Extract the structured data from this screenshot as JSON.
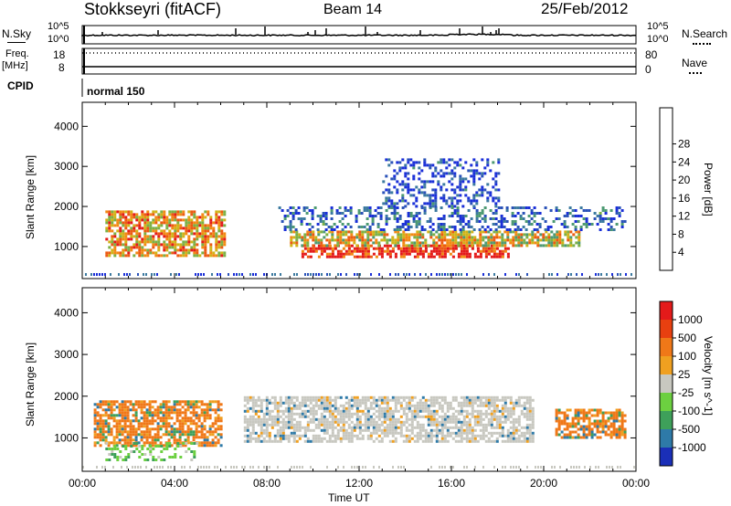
{
  "header": {
    "station": "Stokkseyri (fitACF)",
    "beam": "Beam 14",
    "date": "25/Feb/2012"
  },
  "status_panels": {
    "nsky": {
      "label": "N.Sky",
      "top_tick": "10^5",
      "bottom_tick": "10^0",
      "right_label": "N.Search",
      "right_top_tick": "10^5",
      "right_bottom_tick": "10^0"
    },
    "freq": {
      "label_line1": "Freq.",
      "label_line2": "[MHz]",
      "top_tick": "18",
      "bottom_tick": "8",
      "right_label": "Nave",
      "right_top_tick": "80",
      "right_bottom_tick": "0"
    },
    "cpid": {
      "label": "CPID",
      "value": "normal 150"
    }
  },
  "chart_data": [
    {
      "type": "heatmap",
      "title": "",
      "ylabel": "Slant Range [km]",
      "xlabel": "",
      "ylim": [
        200,
        4600
      ],
      "xlim": [
        "00:00",
        "24:00"
      ],
      "y_ticks": [
        "1000",
        "2000",
        "3000",
        "4000"
      ],
      "colorbar": {
        "label": "Power [dB]",
        "ticks": [
          "4",
          "8",
          "12",
          "16",
          "20",
          "24",
          "28"
        ],
        "colors": [
          "#1a2fd8",
          "#2a52b8",
          "#3c7aa0",
          "#4d9a72",
          "#7cb046",
          "#d0b418",
          "#f28a14",
          "#ec5a12",
          "#e41a1a"
        ]
      },
      "bands": [
        {
          "t_start": 1.0,
          "t_end": 6.2,
          "r_min": 800,
          "r_max": 1900,
          "level": 0.7
        },
        {
          "t_start": 9.5,
          "t_end": 18.5,
          "r_min": 750,
          "r_max": 1050,
          "level": 0.95
        },
        {
          "t_start": 9.0,
          "t_end": 21.5,
          "r_min": 1050,
          "r_max": 1400,
          "level": 0.6
        },
        {
          "t_start": 8.5,
          "t_end": 23.5,
          "r_min": 1400,
          "r_max": 2000,
          "level": 0.2
        },
        {
          "t_start": 13.0,
          "t_end": 18.0,
          "r_min": 2000,
          "r_max": 3200,
          "level": 0.1
        }
      ]
    },
    {
      "type": "heatmap",
      "title": "",
      "ylabel": "Slant Range [km]",
      "xlabel": "Time UT",
      "ylim": [
        200,
        4600
      ],
      "xlim": [
        "00:00",
        "24:00"
      ],
      "y_ticks": [
        "1000",
        "2000",
        "3000",
        "4000"
      ],
      "x_ticks": [
        "00:00",
        "04:00",
        "08:00",
        "12:00",
        "16:00",
        "20:00",
        "00:00"
      ],
      "colorbar": {
        "label": "Velocity [m s^-1]",
        "ticks": [
          "1000",
          "500",
          "100",
          "25",
          "-25",
          "-100",
          "-500",
          "-1000"
        ],
        "colors": [
          "#1a2fb8",
          "#2e7aa8",
          "#3ea05a",
          "#6cd040",
          "#c8c8c0",
          "#f0a020",
          "#f07818",
          "#e84010",
          "#e41a1a"
        ]
      },
      "bands": [
        {
          "t_start": 0.5,
          "t_end": 6.0,
          "r_min": 800,
          "r_max": 1900,
          "level": "orange"
        },
        {
          "t_start": 7.0,
          "t_end": 19.5,
          "r_min": 900,
          "r_max": 2000,
          "level": "gray"
        },
        {
          "t_start": 20.5,
          "t_end": 23.5,
          "r_min": 1000,
          "r_max": 1700,
          "level": "orange"
        },
        {
          "t_start": 1.0,
          "t_end": 5.0,
          "r_min": 500,
          "r_max": 900,
          "level": "green"
        }
      ]
    }
  ]
}
